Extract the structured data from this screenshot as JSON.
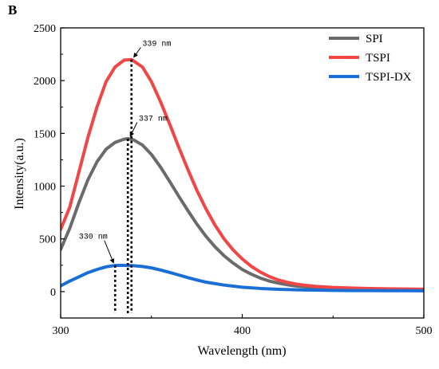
{
  "panel_label": "B",
  "chart_data": {
    "type": "line",
    "xlabel": "Wavelength (nm)",
    "ylabel": "Intensity(a.u.)",
    "xlim": [
      300,
      500
    ],
    "ylim": [
      -250,
      2500
    ],
    "xticks": [
      300,
      400,
      500
    ],
    "yticks": [
      0,
      500,
      1000,
      1500,
      2000,
      2500
    ],
    "grid": false,
    "legend_position": "top-right",
    "series": [
      {
        "name": "SPI",
        "color": "#6b6b6b",
        "x": [
          300,
          305,
          310,
          315,
          320,
          325,
          330,
          335,
          337,
          340,
          345,
          350,
          355,
          360,
          365,
          370,
          375,
          380,
          385,
          390,
          395,
          400,
          405,
          410,
          415,
          420,
          425,
          430,
          440,
          450,
          460,
          470,
          480,
          490,
          500
        ],
        "y": [
          400,
          600,
          840,
          1060,
          1230,
          1350,
          1415,
          1445,
          1450,
          1440,
          1390,
          1300,
          1180,
          1045,
          905,
          770,
          640,
          525,
          425,
          340,
          270,
          210,
          165,
          128,
          100,
          80,
          64,
          52,
          38,
          30,
          26,
          24,
          22,
          21,
          20
        ]
      },
      {
        "name": "TSPI",
        "color": "#f04646",
        "x": [
          300,
          305,
          310,
          315,
          320,
          325,
          330,
          335,
          339,
          345,
          350,
          355,
          360,
          365,
          370,
          375,
          380,
          385,
          390,
          395,
          400,
          405,
          410,
          415,
          420,
          425,
          430,
          440,
          450,
          460,
          470,
          480,
          490,
          500
        ],
        "y": [
          590,
          800,
          1130,
          1460,
          1750,
          1990,
          2130,
          2195,
          2200,
          2130,
          1990,
          1800,
          1590,
          1370,
          1160,
          960,
          785,
          630,
          500,
          395,
          310,
          240,
          185,
          142,
          110,
          87,
          70,
          50,
          40,
          34,
          30,
          27,
          25,
          23
        ]
      },
      {
        "name": "TSPI-DX",
        "color": "#1a6fd6",
        "x": [
          300,
          305,
          310,
          315,
          320,
          325,
          330,
          335,
          340,
          345,
          350,
          355,
          360,
          365,
          370,
          375,
          380,
          390,
          400,
          410,
          420,
          430,
          440,
          450,
          460,
          470,
          480,
          490,
          500
        ],
        "y": [
          55,
          100,
          140,
          180,
          210,
          235,
          248,
          250,
          246,
          238,
          225,
          205,
          182,
          158,
          133,
          110,
          90,
          62,
          42,
          30,
          22,
          17,
          14,
          12,
          10,
          10,
          9,
          9,
          8
        ]
      }
    ],
    "annotations": [
      {
        "label": "339 nm",
        "x": 339,
        "peak": 2200,
        "text_x": 345,
        "text_y": 2330
      },
      {
        "label": "337 nm",
        "x": 337,
        "peak": 1450,
        "text_x": 343,
        "text_y": 1620
      },
      {
        "label": "330 nm",
        "x": 330,
        "peak": 250,
        "text_x": 310,
        "text_y": 500
      }
    ]
  }
}
